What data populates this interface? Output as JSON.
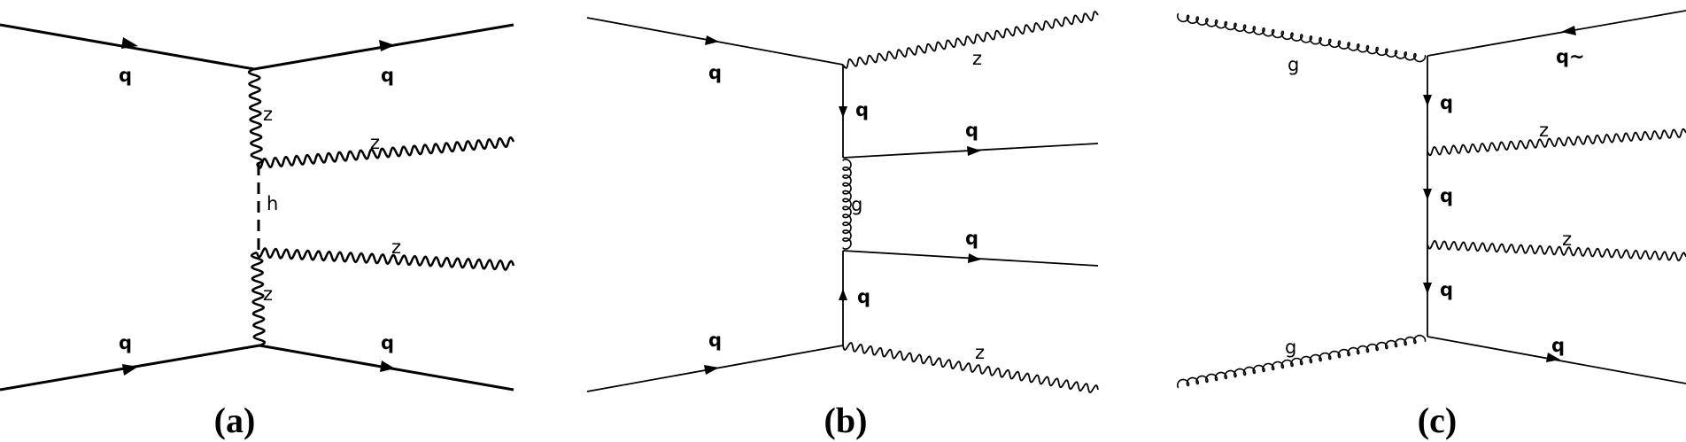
{
  "diagrams": [
    {
      "caption": "(a)",
      "labels": {
        "q_in_top": "q",
        "q_out_top": "q",
        "z_prop_top": "z",
        "z_out_top": "z",
        "h_prop": "h",
        "z_out_bottom": "z",
        "z_prop_bottom": "z",
        "q_in_bottom": "q",
        "q_out_bottom": "q"
      }
    },
    {
      "caption": "(b)",
      "labels": {
        "q_in_top": "q",
        "z_out_top": "z",
        "q_prop_top": "q",
        "q_out_mid_top": "q",
        "g_prop": "g",
        "q_out_mid_bottom": "q",
        "q_prop_bottom": "q",
        "q_in_bottom": "q",
        "z_out_bottom": "z"
      }
    },
    {
      "caption": "(c)",
      "labels": {
        "g_in_top": "g",
        "q_out_top": "q~",
        "q_prop_1": "q",
        "z_out_1": "z",
        "q_prop_2": "q",
        "z_out_2": "z",
        "q_prop_3": "q",
        "g_in_bottom": "g",
        "q_out_bottom": "q"
      }
    }
  ]
}
